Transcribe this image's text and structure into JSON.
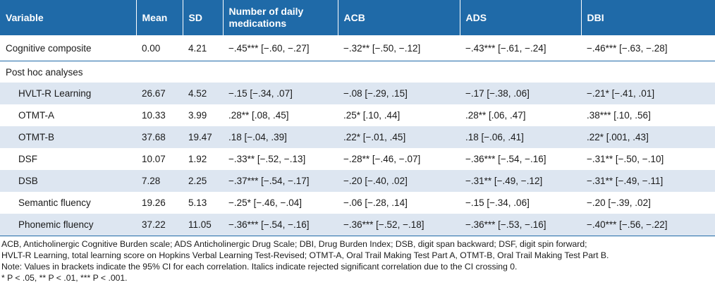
{
  "table": {
    "headers": [
      "Variable",
      "Mean",
      "SD",
      "Number of daily medications",
      "ACB",
      "ADS",
      "DBI"
    ],
    "first_row": [
      "Cognitive composite",
      "0.00",
      "4.21",
      "−.45*** [−.60, −.27]",
      "−.32** [−.50, −.12]",
      "−.43*** [−.61, −.24]",
      "−.46*** [−.63, −.28]"
    ],
    "section_label": "Post hoc analyses",
    "rows": [
      [
        "HVLT-R Learning",
        "26.67",
        "4.52",
        "−.15 [−.34, .07]",
        "−.08 [−.29, .15]",
        "−.17 [−.38, .06]",
        "−.21* [−.41, .01]"
      ],
      [
        "OTMT-A",
        "10.33",
        "3.99",
        ".28** [.08, .45]",
        ".25* [.10, .44]",
        ".28** [.06, .47]",
        ".38*** [.10, .56]"
      ],
      [
        "OTMT-B",
        "37.68",
        "19.47",
        ".18 [−.04, .39]",
        ".22* [−.01, .45]",
        ".18 [−.06, .41]",
        ".22* [.001, .43]"
      ],
      [
        "DSF",
        "10.07",
        "1.92",
        "−.33** [−.52, −.13]",
        "−.28** [−.46, −.07]",
        "−.36*** [−.54, −.16]",
        "−.31** [−.50, −.10]"
      ],
      [
        "DSB",
        "7.28",
        "2.25",
        "−.37*** [−.54, −.17]",
        "−.20 [−.40, .02]",
        "−.31** [−.49, −.12]",
        "−.31** [−.49, −.11]"
      ],
      [
        "Semantic fluency",
        "19.26",
        "5.13",
        "−.25* [−.46, −.04]",
        "−.06 [−.28, .14]",
        "−.15 [−.34, .06]",
        "−.20 [−.39, .02]"
      ],
      [
        "Phonemic fluency",
        "37.22",
        "11.05",
        "−.36*** [−.54, −.16]",
        "−.36*** [−.52, −.18]",
        "−.36*** [−.53, −.16]",
        "−.40*** [−.56, −.22]"
      ]
    ]
  },
  "footnotes": {
    "line1": "ACB, Anticholinergic Cognitive Burden scale; ADS Anticholinergic Drug Scale; DBI, Drug Burden Index; DSB, digit span backward; DSF, digit spin forward;",
    "line2": "HVLT-R Learning, total learning score on Hopkins Verbal Learning Test-Revised; OTMT-A, Oral Trail Making Test Part A, OTMT-B, Oral Trail Making Test Part B.",
    "line3": "Note: Values in brackets indicate the 95% CI for each correlation. Italics indicate rejected significant correlation due to the CI crossing 0.",
    "line4": "* P < .05, ** P < .01, *** P < .001."
  },
  "colors": {
    "header_bg": "#1f6aa8",
    "shade": "#dde6f1"
  }
}
